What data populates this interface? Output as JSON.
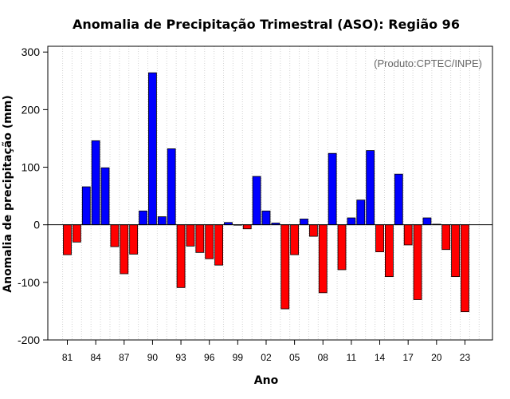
{
  "chart_data": {
    "type": "bar",
    "title": "Anomalia de Precipitação Trimestral (ASO): Região 96",
    "xlabel": "Ano",
    "ylabel": "Anomalia de precipitação (mm)",
    "annotation": "(Produto:CPTEC/INPE)",
    "ylim": [
      -200,
      310
    ],
    "yticks": [
      -200,
      -100,
      0,
      100,
      200,
      300
    ],
    "xtick_labels": [
      "81",
      "84",
      "87",
      "90",
      "93",
      "96",
      "99",
      "02",
      "05",
      "08",
      "11",
      "14",
      "17",
      "20",
      "23"
    ],
    "grid": true,
    "years": [
      1981,
      1982,
      1983,
      1984,
      1985,
      1986,
      1987,
      1988,
      1989,
      1990,
      1991,
      1992,
      1993,
      1994,
      1995,
      1996,
      1997,
      1998,
      1999,
      2000,
      2001,
      2002,
      2003,
      2004,
      2005,
      2006,
      2007,
      2008,
      2009,
      2010,
      2011,
      2012,
      2013,
      2014,
      2015,
      2016,
      2017,
      2018,
      2019,
      2020,
      2021,
      2022,
      2023
    ],
    "values": [
      -52,
      -30,
      66,
      146,
      99,
      -38,
      -85,
      -51,
      24,
      264,
      14,
      132,
      -109,
      -37,
      -48,
      -59,
      -70,
      4,
      0,
      -7,
      84,
      24,
      3,
      -146,
      -52,
      10,
      -20,
      -118,
      124,
      -78,
      12,
      43,
      129,
      -47,
      -90,
      88,
      -35,
      -130,
      12,
      1,
      -43,
      -90,
      -151
    ],
    "colors": {
      "positive": "#0000ff",
      "negative": "#ff0000",
      "outline": "#000000",
      "grid": "#d3d3d3"
    }
  }
}
